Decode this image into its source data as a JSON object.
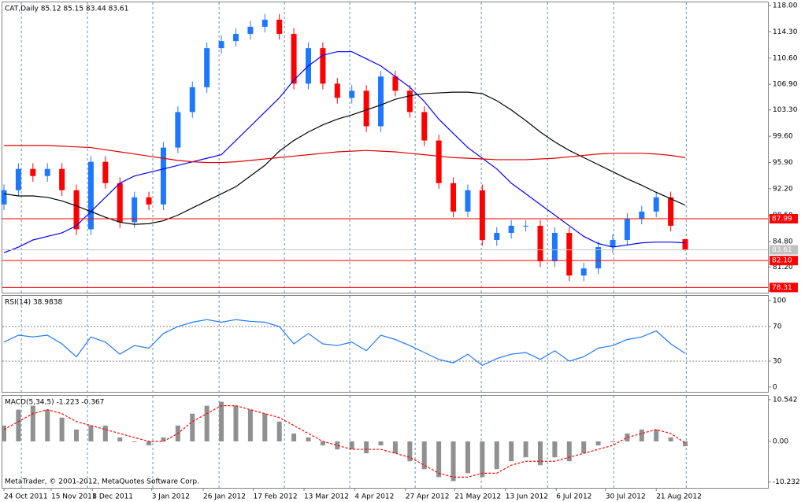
{
  "chart_data": [
    {
      "type": "candlestick",
      "title": "CAT,Daily  85.12 85.15 83.44 83.61",
      "xlim": [
        0,
        47
      ],
      "ylim": [
        77.58,
        118.55
      ],
      "yticks": [
        {
          "value": 118,
          "label": "118.00"
        },
        {
          "value": 114.3,
          "label": "114.30"
        },
        {
          "value": 110.6,
          "label": "110.60"
        },
        {
          "value": 106.9,
          "label": "106.90"
        },
        {
          "value": 103.3,
          "label": "103.30"
        },
        {
          "value": 99.6,
          "label": "99.60"
        },
        {
          "value": 95.9,
          "label": "95.90"
        },
        {
          "value": 92.2,
          "label": "92.20"
        },
        {
          "value": 88.5,
          "label": "88.50"
        },
        {
          "value": 84.8,
          "label": "84.80"
        },
        {
          "value": 81.2,
          "label": "81.20"
        },
        {
          "value": 77.9,
          "label": "77.90"
        }
      ],
      "xgrid": [
        1.2,
        5.76,
        10.27,
        14.84,
        19.35,
        23.86,
        28.37,
        32.93,
        37.5,
        42.07,
        47.07
      ],
      "up_color": "#1e78ff",
      "down_color": "#ff0000",
      "open": [
        90,
        92,
        95,
        94,
        95,
        92,
        86.5,
        96,
        93,
        87.5,
        91,
        90,
        98,
        103,
        106.5,
        112,
        113,
        114,
        115,
        116,
        114,
        107,
        112,
        107,
        105,
        106,
        101,
        108,
        106,
        103,
        99,
        93,
        89,
        92,
        85,
        86,
        87,
        87,
        82,
        86,
        80,
        81,
        84,
        85,
        88,
        89,
        91,
        85.12
      ],
      "high": [
        92.8,
        95.8,
        95.8,
        95.8,
        95.8,
        92.8,
        96.8,
        96.8,
        93.8,
        91.8,
        91.8,
        98.8,
        103.8,
        107.3,
        112.8,
        113.8,
        114.8,
        115.8,
        116.8,
        116.8,
        114.8,
        112.8,
        112.8,
        107.8,
        106.8,
        106.8,
        108.8,
        108.8,
        106.8,
        103.8,
        99.8,
        93.8,
        92.8,
        92.8,
        86.8,
        87.8,
        87.8,
        87.8,
        86.8,
        86.8,
        81.8,
        84.8,
        85.8,
        88.8,
        89.8,
        91.8,
        91.8,
        85.15
      ],
      "low": [
        89.2,
        91.2,
        93.2,
        93.2,
        91.2,
        85.7,
        85.7,
        92.2,
        86.7,
        86.7,
        89.2,
        89.2,
        97.2,
        102.2,
        105.7,
        111.2,
        112.2,
        113.2,
        114.2,
        113.2,
        106.2,
        106.2,
        106.2,
        104.2,
        104.2,
        100.2,
        100.2,
        105.2,
        102.2,
        98.2,
        92.2,
        88.2,
        88.2,
        84.2,
        84.2,
        85.2,
        86.2,
        81.2,
        81.2,
        79.2,
        79.2,
        80.2,
        83.2,
        84.2,
        87.2,
        88.2,
        86.2,
        83.44
      ],
      "close": [
        92,
        95,
        94,
        95,
        92,
        86.5,
        96,
        93,
        87.5,
        91,
        90,
        98,
        103,
        106.5,
        112,
        113,
        114,
        115,
        116,
        114,
        107,
        112,
        107,
        105,
        106,
        101,
        108,
        106,
        103,
        99,
        93,
        89,
        92,
        85,
        86,
        87,
        87,
        82,
        86,
        80,
        81,
        84,
        85,
        88,
        89,
        91,
        87,
        83.61
      ],
      "series": [
        {
          "color": "#0000ff",
          "values": [
            83.2,
            84,
            85,
            85.5,
            86,
            87,
            89,
            91,
            93,
            94,
            94.5,
            95,
            95.5,
            96,
            96.5,
            97,
            99,
            101,
            103,
            105,
            107.5,
            109.5,
            111,
            111.5,
            111.5,
            110.5,
            109.5,
            108,
            106.5,
            104.5,
            102,
            100,
            98,
            96.5,
            95,
            93,
            91.5,
            90,
            88.5,
            87,
            85.5,
            84.5,
            84,
            84.3,
            84.6,
            84.7,
            84.7,
            84.6
          ]
        },
        {
          "color": "#000000",
          "values": [
            91.5,
            91.2,
            91.2,
            91,
            90.5,
            89.8,
            89,
            88.2,
            87.5,
            87.2,
            87.3,
            87.7,
            88.5,
            89.5,
            90.5,
            91.5,
            92.5,
            94,
            95.5,
            97.5,
            99,
            100.2,
            101.2,
            102,
            102.6,
            103.3,
            104,
            104.8,
            105.3,
            105.6,
            105.7,
            105.8,
            105.8,
            105.6,
            104.6,
            103.3,
            101.8,
            100.2,
            98.8,
            97.6,
            96.6,
            95.6,
            94.6,
            93.6,
            92.7,
            91.7,
            90.8,
            89.9
          ]
        },
        {
          "color": "#dd0000",
          "values": [
            98.3,
            98.3,
            98.3,
            98.3,
            98.2,
            98.1,
            98,
            97.7,
            97.4,
            97.1,
            96.8,
            96.5,
            96.2,
            96,
            95.9,
            95.9,
            96,
            96.2,
            96.4,
            96.6,
            96.8,
            97,
            97.2,
            97.4,
            97.5,
            97.6,
            97.5,
            97.4,
            97.2,
            97,
            96.8,
            96.6,
            96.5,
            96.4,
            96.3,
            96.3,
            96.3,
            96.4,
            96.5,
            96.7,
            96.9,
            97.1,
            97.2,
            97.2,
            97.2,
            97.1,
            96.9,
            96.6
          ]
        }
      ],
      "hlines": [
        {
          "value": 87.99,
          "color": "#ff0000"
        },
        {
          "value": 82.1,
          "label": "82.10",
          "color": "#ff0000"
        },
        {
          "value": 78.31,
          "color": "#ff0000"
        },
        {
          "value": 83.61,
          "color": "#c0c0c0"
        }
      ]
    },
    {
      "type": "line",
      "title": "RSI(14) 38.9838",
      "xlim": [
        0,
        47
      ],
      "ylim": [
        -5.5,
        106.4
      ],
      "yticks": [
        100,
        70,
        30,
        0
      ],
      "levels": [
        70,
        30
      ],
      "series": [
        {
          "color": "#1e78ff",
          "values": [
            52,
            60,
            58,
            60,
            50,
            35,
            58,
            52,
            38,
            48,
            45,
            62,
            70,
            75,
            78,
            75,
            78,
            76,
            75,
            70,
            50,
            62,
            50,
            48,
            52,
            42,
            60,
            55,
            48,
            40,
            32,
            28,
            38,
            25,
            33,
            38,
            40,
            32,
            42,
            30,
            35,
            45,
            48,
            55,
            58,
            65,
            50,
            38.9838
          ]
        }
      ]
    },
    {
      "type": "bar",
      "title": "MACD(5,34,5) -1.223 -0.367",
      "xlim": [
        0,
        47
      ],
      "ylim": [
        -11.7,
        11.7
      ],
      "yticks": [
        10.542,
        {
          "value": 0,
          "label": "0.00"
        },
        -10.232
      ],
      "color": "#909090",
      "values": [
        4,
        8,
        9,
        8,
        6,
        3,
        4,
        4,
        1,
        0,
        -1,
        1,
        4,
        7,
        9,
        10,
        9,
        8,
        7,
        5,
        2,
        1,
        -1,
        -2,
        -2,
        -3,
        -1,
        -3,
        -5,
        -7,
        -9,
        -10,
        -8,
        -9,
        -7,
        -5,
        -4,
        -6,
        -4,
        -5,
        -3,
        -1,
        0,
        2,
        3,
        3,
        1,
        -1.223
      ],
      "series": [
        {
          "color": "#ff0000",
          "values": [
            3,
            5,
            7,
            8,
            7,
            5,
            4,
            3,
            2,
            1,
            0,
            0,
            2,
            5,
            7,
            9,
            9,
            8,
            7,
            6,
            4,
            2,
            0,
            -1,
            -2,
            -2,
            -2,
            -3,
            -4,
            -6,
            -8,
            -9,
            -9,
            -8,
            -8,
            -6,
            -5,
            -5,
            -5,
            -4,
            -3,
            -2,
            -1,
            1,
            2,
            3,
            2,
            -0.367
          ]
        }
      ],
      "xticks": [
        {
          "value": 0,
          "label": "24 Oct 2011"
        },
        {
          "value": 3.26,
          "label": "15 Nov 2011"
        },
        {
          "value": 6.1,
          "label": "8 Dec 2011"
        },
        {
          "value": 10.2,
          "label": "3 Jan 2012"
        },
        {
          "value": 13.75,
          "label": "26 Jan 2012"
        },
        {
          "value": 17.2,
          "label": "17 Feb 2012"
        },
        {
          "value": 20.7,
          "label": "13 Mar 2012"
        },
        {
          "value": 24.2,
          "label": "4 Apr 2012"
        },
        {
          "value": 27.7,
          "label": "27 Apr 2012"
        },
        {
          "value": 31.1,
          "label": "21 May 2012"
        },
        {
          "value": 34.6,
          "label": "13 Jun 2012"
        },
        {
          "value": 38.1,
          "label": "6 Jul 2012"
        },
        {
          "value": 41.5,
          "label": "30 Jul 2012"
        },
        {
          "value": 45,
          "label": "21 Aug 2012"
        }
      ],
      "footnote": "MetaTrader, © 2001-2012, MetaQuotes Software Corp."
    }
  ]
}
